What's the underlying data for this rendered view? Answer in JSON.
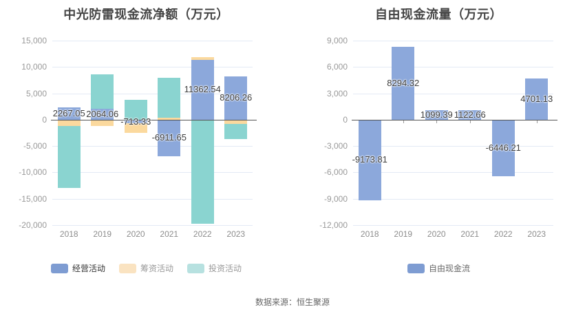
{
  "page": {
    "source_note": "数据来源：恒生聚源"
  },
  "colors": {
    "gridline": "#E3E9F5",
    "zero_axis": "#555555",
    "axis_tick": "#999999",
    "y_tick_label": "#999999",
    "x_tick_label": "#8c8c8c",
    "value_label": "#3d3d3d",
    "title": "#444444",
    "bar_blue": "#8CA8DB",
    "bar_orange": "#FBD99E",
    "bar_teal": "#8AD4D0"
  },
  "chart_data": [
    {
      "type": "bar",
      "stacked": true,
      "title": "中光防雷现金流净额（万元）",
      "categories": [
        "2018",
        "2019",
        "2020",
        "2021",
        "2022",
        "2023"
      ],
      "series": [
        {
          "name": "经营活动",
          "color": "#8CA8DB",
          "values": [
            2267.05,
            2064.06,
            -713.33,
            -6911.65,
            11362.54,
            8206.26
          ]
        },
        {
          "name": "筹资活动",
          "color": "#FBD99E",
          "values": [
            -1250,
            -1150,
            -1800,
            390,
            500,
            -820
          ]
        },
        {
          "name": "投资活动",
          "color": "#8AD4D0",
          "values": [
            -11650,
            6550,
            3780,
            7600,
            -19700,
            -2820
          ]
        }
      ],
      "data_labels": {
        "series_index": 0,
        "texts": [
          "2267.05",
          "2064.06",
          "-713.33",
          "-6911.65",
          "11362.54",
          "8206.26"
        ]
      },
      "ylim": [
        -20000,
        15000
      ],
      "ytick_step": 5000,
      "ytick_labels": [
        "15,000",
        "10,000",
        "5,000",
        "0",
        "-5,000",
        "-10,000",
        "-15,000",
        "-20,000"
      ],
      "grid": true,
      "legend_position": "bottom",
      "legend": [
        {
          "label": "经营活动",
          "swatch_color": "#7E9CD2",
          "text_color": "#333333"
        },
        {
          "label": "筹资活动",
          "swatch_color": "#FAE3C1",
          "text_color": "#999999"
        },
        {
          "label": "投资活动",
          "swatch_color": "#B7E1E0",
          "text_color": "#999999"
        }
      ]
    },
    {
      "type": "bar",
      "stacked": false,
      "title": "自由现金流量（万元）",
      "categories": [
        "2018",
        "2019",
        "2020",
        "2021",
        "2022",
        "2023"
      ],
      "series": [
        {
          "name": "自由现金流",
          "color": "#8CA8DB",
          "values": [
            -9173.81,
            8294.32,
            1099.39,
            1122.66,
            -6446.21,
            4701.13
          ]
        }
      ],
      "data_labels": {
        "series_index": 0,
        "texts": [
          "-9173.81",
          "8294.32",
          "1099.39",
          "1122.66",
          "-6446.21",
          "4701.13"
        ]
      },
      "ylim": [
        -12000,
        9000
      ],
      "ytick_step": 3000,
      "ytick_labels": [
        "9,000",
        "6,000",
        "3,000",
        "0",
        "-3,000",
        "-6,000",
        "-9,000",
        "-12,000"
      ],
      "grid": true,
      "legend_position": "bottom",
      "legend": [
        {
          "label": "自由现金流",
          "swatch_color": "#7E9CD2",
          "text_color": "#666666"
        }
      ]
    }
  ]
}
